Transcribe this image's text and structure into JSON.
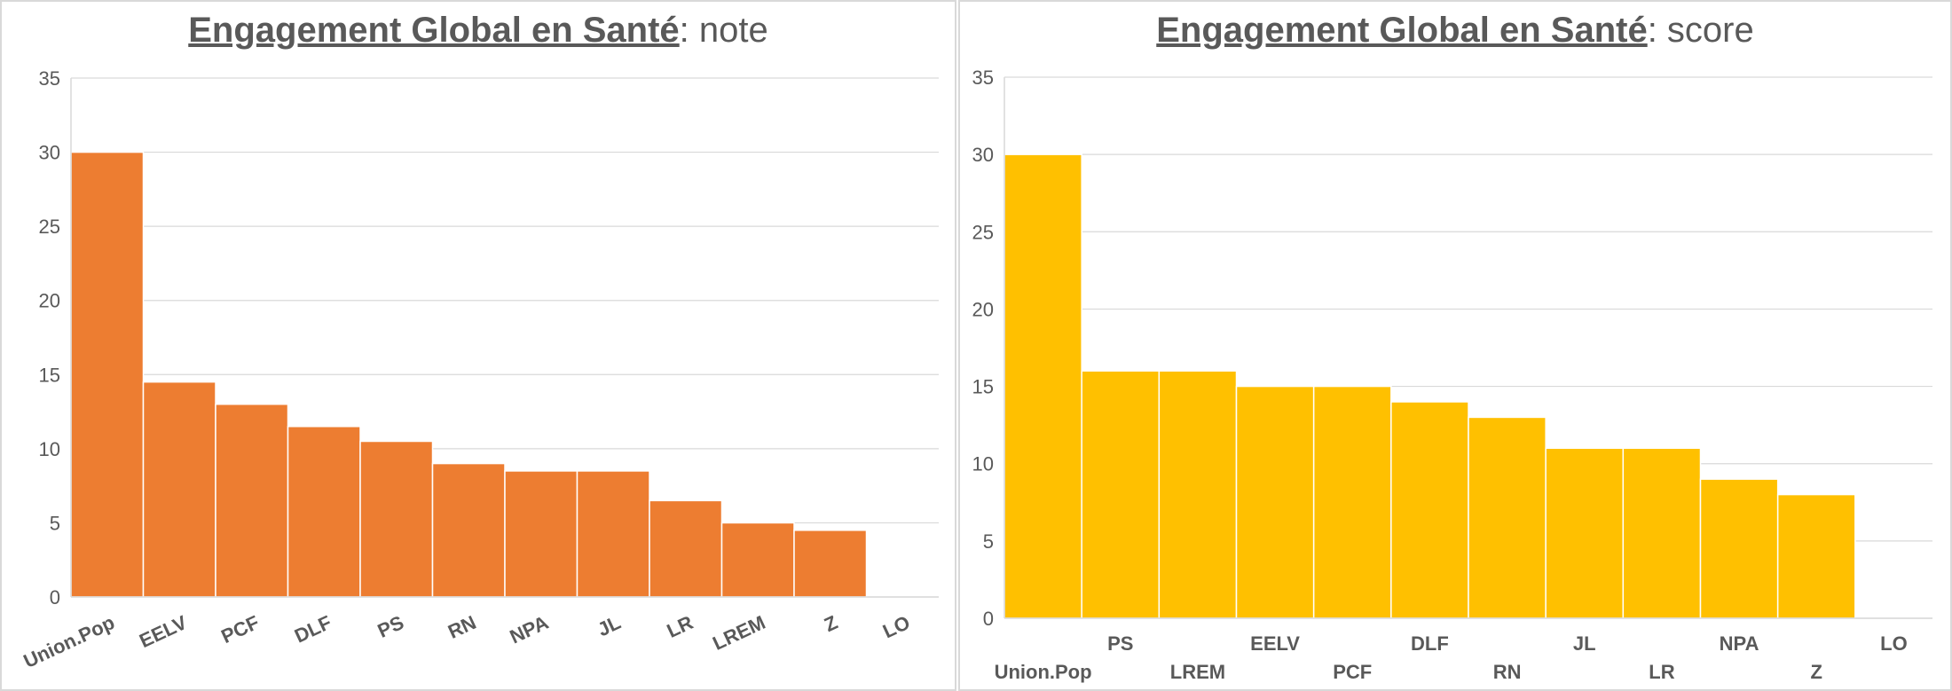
{
  "chart_data": [
    {
      "type": "bar",
      "title_bold": "Engagement Global en Santé",
      "title_rest": ": note",
      "categories": [
        "Union.Pop",
        "EELV",
        "PCF",
        "DLF",
        "PS",
        "RN",
        "NPA",
        "JL",
        "LR",
        "LREM",
        "Z",
        "LO"
      ],
      "values": [
        30,
        14.5,
        13,
        11.5,
        10.5,
        9,
        8.5,
        8.5,
        6.5,
        5,
        4.5,
        0
      ],
      "ylim": [
        0,
        35
      ],
      "yticks": [
        0,
        5,
        10,
        15,
        20,
        25,
        30,
        35
      ],
      "grid": true,
      "color": "#ED7D31",
      "label_style": "rotated"
    },
    {
      "type": "bar",
      "title_bold": "Engagement Global en Santé",
      "title_rest": ": score",
      "categories": [
        "Union.Pop",
        "PS",
        "LREM",
        "EELV",
        "PCF",
        "DLF",
        "RN",
        "JL",
        "LR",
        "NPA",
        "Z",
        "LO"
      ],
      "values": [
        30,
        16,
        16,
        15,
        15,
        14,
        13,
        11,
        11,
        9,
        8,
        0
      ],
      "ylim": [
        0,
        35
      ],
      "yticks": [
        0,
        5,
        10,
        15,
        20,
        25,
        30,
        35
      ],
      "grid": true,
      "color": "#FFC000",
      "label_style": "staggered"
    }
  ]
}
